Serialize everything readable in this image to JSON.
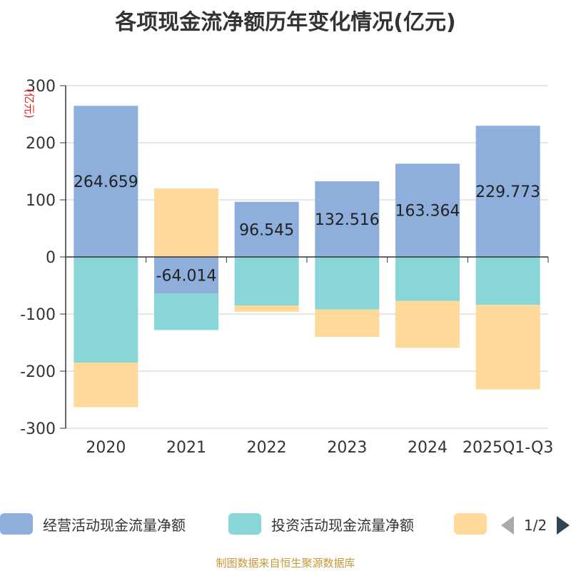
{
  "chart_data": {
    "type": "bar",
    "stacked": true,
    "title": "各项现金流净额历年变化情况(亿元)",
    "ylabel": "(亿元)",
    "ylim": [
      -300,
      300
    ],
    "yticks": [
      300,
      200,
      100,
      0,
      -100,
      -200,
      -300
    ],
    "categories": [
      "2020",
      "2021",
      "2022",
      "2023",
      "2024",
      "2025Q1-Q3"
    ],
    "series": [
      {
        "name": "经营活动现金流量净额",
        "color": "#8eaedb",
        "values": [
          264.659,
          -64.014,
          96.545,
          132.516,
          163.364,
          229.773
        ],
        "labels": [
          "264.659",
          "-64.014",
          "96.545",
          "132.516",
          "163.364",
          "229.773"
        ]
      },
      {
        "name": "投资活动现金流量净额",
        "color": "#88d6d8",
        "values": [
          -185,
          -64,
          -85,
          -92,
          -77,
          -84
        ]
      },
      {
        "name": "",
        "color": "#fed99a",
        "values": [
          -78,
          120,
          -11,
          -48,
          -82,
          -148
        ]
      }
    ]
  },
  "legend": {
    "page": "1/2"
  },
  "source": "制图数据来自恒生聚源数据库"
}
